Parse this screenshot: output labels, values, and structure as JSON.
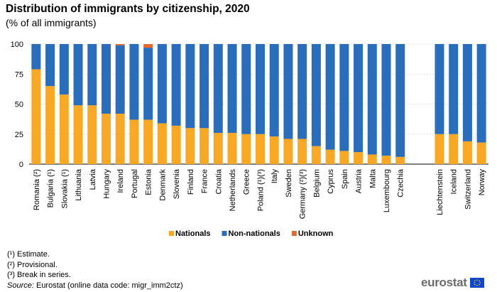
{
  "chart_data": {
    "type": "bar",
    "stacked": true,
    "title": "Distribution of immigrants by citizenship, 2020",
    "subtitle": "(% of all immigrants)",
    "ylim": [
      0,
      100
    ],
    "yticks": [
      0,
      25,
      50,
      75,
      100
    ],
    "grid": true,
    "legend_position": "bottom",
    "categories": [
      "Romania (²)",
      "Bulgaria (¹)",
      "Slovakia (¹)",
      "Lithuania",
      "Latvia",
      "Hungary",
      "Ireland",
      "Portugal",
      "Estonia",
      "Denmark",
      "Slovenia",
      "Finland",
      "France",
      "Croatia",
      "Netherlands",
      "Greece",
      "Poland (¹)(³)",
      "Italy",
      "Sweden",
      "Germany (²)(³)",
      "Belgium",
      "Cyprus",
      "Spain",
      "Austria",
      "Malta",
      "Luxembourg",
      "Czechia",
      "Liechtenstein",
      "Iceland",
      "Switzerland",
      "Norway"
    ],
    "group_break_after_index": 26,
    "series": [
      {
        "name": "Nationals",
        "color": "#f9a825",
        "values": [
          79,
          65,
          58,
          49,
          49,
          42,
          42,
          37,
          37,
          34,
          32,
          30,
          30,
          26,
          26,
          25,
          25,
          23,
          21,
          21,
          15,
          12,
          11,
          10,
          8,
          7,
          6,
          25,
          25,
          19,
          18
        ]
      },
      {
        "name": "Non-nationals",
        "color": "#2a6ebb",
        "values": [
          21,
          35,
          42,
          51,
          51,
          58,
          57,
          63,
          60,
          66,
          68,
          70,
          70,
          74,
          74,
          75,
          75,
          77,
          79,
          79,
          85,
          88,
          89,
          90,
          92,
          93,
          94,
          75,
          75,
          81,
          82
        ]
      },
      {
        "name": "Unknown",
        "color": "#e8692a",
        "values": [
          0,
          0,
          0,
          0,
          0,
          0,
          1,
          0,
          3,
          0,
          0,
          0,
          0,
          0,
          0,
          0,
          0,
          0,
          0,
          0,
          0,
          0,
          0,
          0,
          0,
          0,
          0,
          0,
          0,
          0,
          0
        ]
      }
    ]
  },
  "notes": [
    "(¹) Estimate.",
    "(²) Provisional.",
    "(³) Break in series."
  ],
  "source": {
    "label": "Source:",
    "text": " Eurostat (online data code: migr_imm2ctz)"
  },
  "logo": {
    "text": "eurostat"
  }
}
